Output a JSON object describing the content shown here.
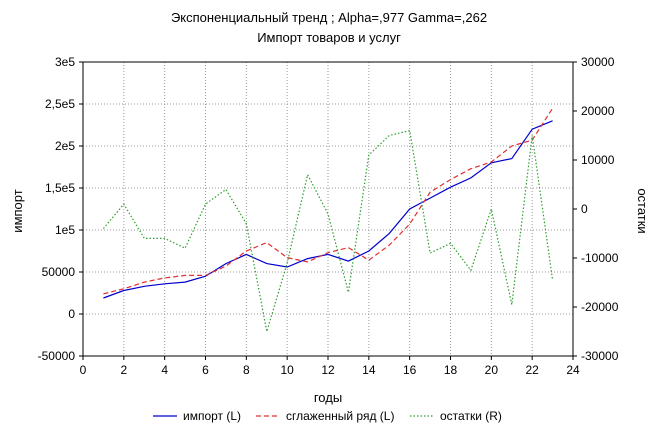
{
  "chart_data": {
    "type": "line",
    "title": "Экспоненциальный тренд ; Alpha=,977 Gamma=,262",
    "subtitle": "Импорт товаров и услуг",
    "xlabel": "годы",
    "ylabel_left": "импорт",
    "ylabel_right": "остатки",
    "xlim": [
      0,
      24
    ],
    "ylim_left": [
      -50000,
      300000
    ],
    "ylim_right": [
      -30000,
      30000
    ],
    "x_ticks": [
      "0",
      "2",
      "4",
      "6",
      "8",
      "10",
      "12",
      "14",
      "16",
      "18",
      "20",
      "22",
      "24"
    ],
    "y_left_ticks": [
      "-50000",
      "0",
      "50000",
      "1e5",
      "1,5e5",
      "2e5",
      "2,5e5",
      "3e5"
    ],
    "y_right_ticks": [
      "-30000",
      "-20000",
      "-10000",
      "0",
      "10000",
      "20000",
      "30000"
    ],
    "grid": true,
    "legend_position": "bottom",
    "x": [
      1,
      2,
      3,
      4,
      5,
      6,
      7,
      8,
      9,
      10,
      11,
      12,
      13,
      14,
      15,
      16,
      17,
      18,
      19,
      20,
      21,
      22,
      23
    ],
    "series": [
      {
        "name": "импорт (L)",
        "axis": "left",
        "style": "solid",
        "color": "#0000cc",
        "values": [
          19000,
          28000,
          33000,
          36000,
          38000,
          45000,
          60000,
          71000,
          60000,
          56000,
          66000,
          71000,
          63000,
          75000,
          96000,
          125000,
          138000,
          151000,
          162000,
          180000,
          185000,
          220000,
          230000
        ]
      },
      {
        "name": "сглаженный ряд (L)",
        "axis": "left",
        "style": "dashed",
        "color": "#e03030",
        "values": [
          24000,
          30000,
          38000,
          43000,
          46000,
          46000,
          57000,
          75000,
          85000,
          67000,
          62000,
          73000,
          79000,
          64000,
          82000,
          107000,
          145000,
          160000,
          173000,
          181000,
          200000,
          207000,
          245000
        ]
      },
      {
        "name": "остатки (R)",
        "axis": "right",
        "style": "dotted",
        "color": "#2e9e2e",
        "values": [
          -4000,
          1000,
          -6000,
          -6000,
          -8000,
          1000,
          4000,
          -3000,
          -25000,
          -11000,
          7000,
          -1000,
          -17000,
          11000,
          15000,
          16000,
          -9000,
          -7000,
          -12500,
          0,
          -19500,
          15000,
          -14500
        ]
      }
    ]
  }
}
